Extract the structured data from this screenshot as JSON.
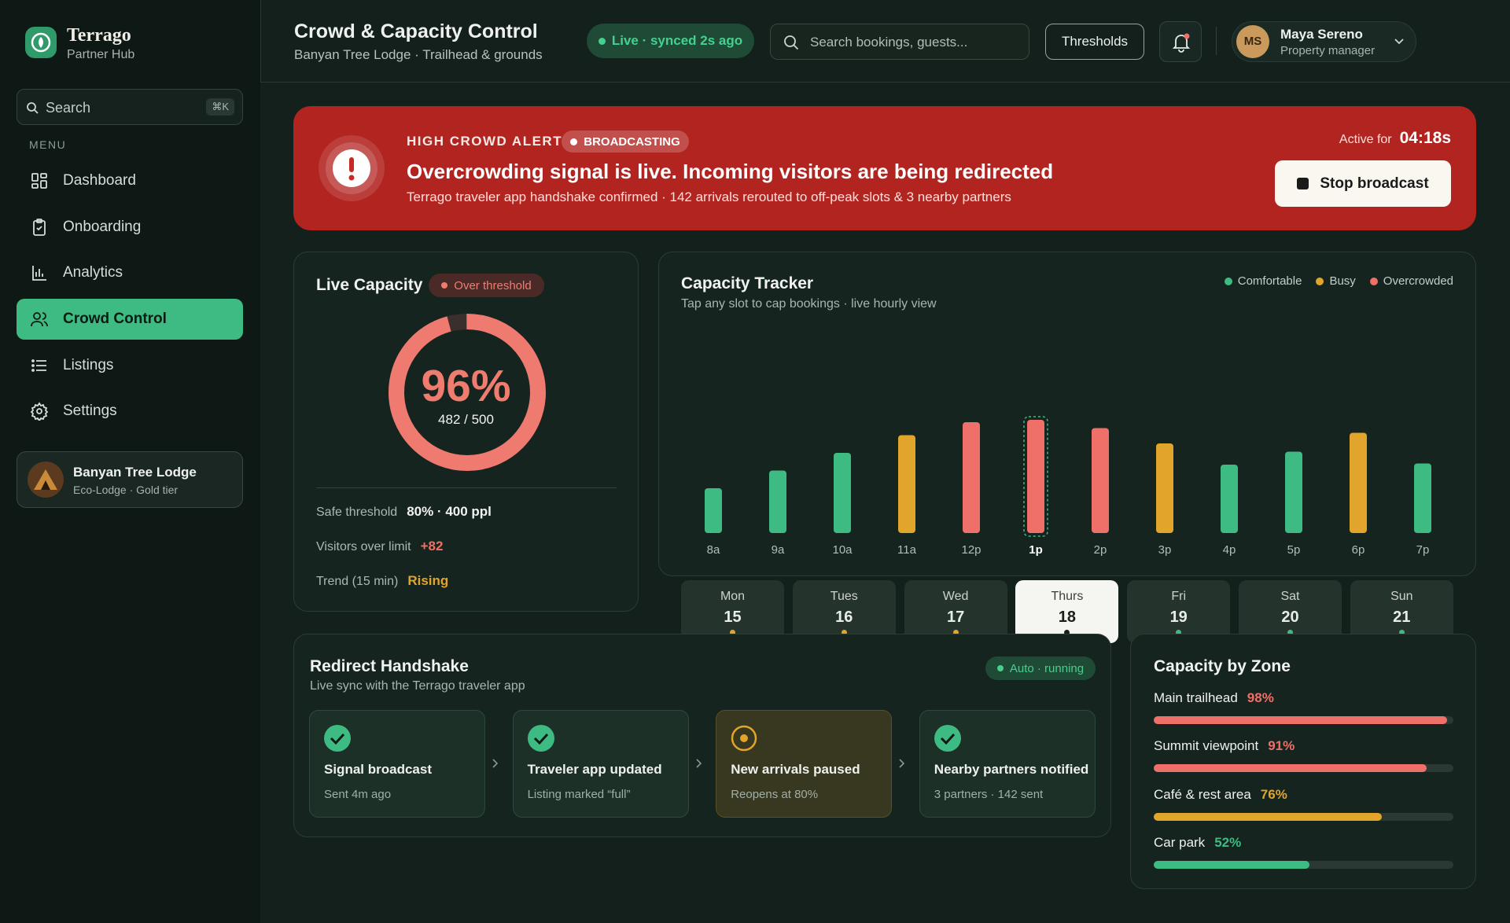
{
  "sidebar": {
    "brand": "Terrago",
    "brand_sub": "Partner Hub",
    "search_placeholder": "Search",
    "search_shortcut": "⌘K",
    "menu_label": "MENU",
    "nav": [
      "Dashboard",
      "Onboarding",
      "Analytics",
      "Crowd Control",
      "Listings",
      "Settings"
    ],
    "active_nav": 3,
    "property": {
      "name": "Banyan Tree Lodge",
      "tier": "Eco-Lodge · Gold tier"
    }
  },
  "header": {
    "title": "Crowd & Capacity Control",
    "subtitle": "Banyan Tree Lodge · Trailhead & grounds",
    "status": "Live · synced 2s ago",
    "search_placeholder": "Search bookings, guests...",
    "thresholds_button": "Thresholds",
    "user": {
      "initials": "MS",
      "name": "Maya Sereno",
      "role": "Property manager"
    }
  },
  "alert": {
    "label": "HIGH CROWD ALERT",
    "badge": "BROADCASTING",
    "headline": "Overcrowding signal is live. Incoming visitors are being redirected",
    "detail": "Terrago traveler app handshake confirmed · 142 arrivals rerouted to off-peak slots & 3 nearby partners",
    "active_label": "Active for",
    "active_time": "04:18s",
    "button": "Stop broadcast"
  },
  "live_capacity": {
    "title": "Live Capacity",
    "badge": "Over threshold",
    "percent": 96,
    "percent_label": "96%",
    "count_label": "482 / 500",
    "stats": [
      {
        "label": "Safe threshold",
        "value": "80% · 400 ppl",
        "status": "neutral"
      },
      {
        "label": "Visitors over limit",
        "value": "+82",
        "status": "over"
      },
      {
        "label": "Trend (15 min)",
        "value": "Rising",
        "status": "busy"
      }
    ]
  },
  "capacity_tracker": {
    "title": "Capacity Tracker",
    "subtitle": "Tap any slot to cap bookings · live hourly view",
    "legend": [
      {
        "name": "Comfortable",
        "color": "#3dbb82"
      },
      {
        "name": "Busy",
        "color": "#e0a52a"
      },
      {
        "name": "Overcrowded",
        "color": "#ef7068"
      }
    ],
    "days": [
      {
        "name": "Mon",
        "date": 15,
        "status": 1
      },
      {
        "name": "Tues",
        "date": 16,
        "status": 1
      },
      {
        "name": "Wed",
        "date": 17,
        "status": 1
      },
      {
        "name": "Thurs",
        "date": 18,
        "status": 2
      },
      {
        "name": "Fri",
        "date": 19,
        "status": 0
      },
      {
        "name": "Sat",
        "date": 20,
        "status": 0
      },
      {
        "name": "Sun",
        "date": 21,
        "status": 0
      }
    ],
    "selected_day": 3,
    "hours": [
      "8a",
      "9a",
      "10a",
      "11a",
      "12p",
      "1p",
      "2p",
      "3p",
      "4p",
      "5p",
      "6p",
      "7p"
    ],
    "values": [
      38,
      53,
      68,
      83,
      94,
      96,
      89,
      76,
      58,
      69,
      85,
      59
    ],
    "status": [
      0,
      0,
      0,
      1,
      2,
      2,
      2,
      1,
      0,
      0,
      1,
      0
    ],
    "selected_hour": 5
  },
  "handshake": {
    "title": "Redirect Handshake",
    "subtitle": "Live sync with the Terrago traveler app",
    "badge": "Auto · running",
    "steps": [
      {
        "title": "Signal broadcast",
        "note": "Sent 4m ago",
        "state": "done"
      },
      {
        "title": "Traveler app updated",
        "note": "Listing marked “full”",
        "state": "done"
      },
      {
        "title": "New arrivals paused",
        "note": "Reopens at 80%",
        "state": "paused"
      },
      {
        "title": "Nearby partners notified",
        "note": "3 partners · 142 sent",
        "state": "done"
      }
    ]
  },
  "zones": {
    "title": "Capacity by Zone",
    "items": [
      {
        "name": "Main trailhead",
        "value": 98,
        "label": "98%",
        "status": 2
      },
      {
        "name": "Summit viewpoint",
        "value": 91,
        "label": "91%",
        "status": 2
      },
      {
        "name": "Café & rest area",
        "value": 76,
        "label": "76%",
        "status": 1
      },
      {
        "name": "Car park",
        "value": 52,
        "label": "52%",
        "status": 0
      }
    ]
  }
}
